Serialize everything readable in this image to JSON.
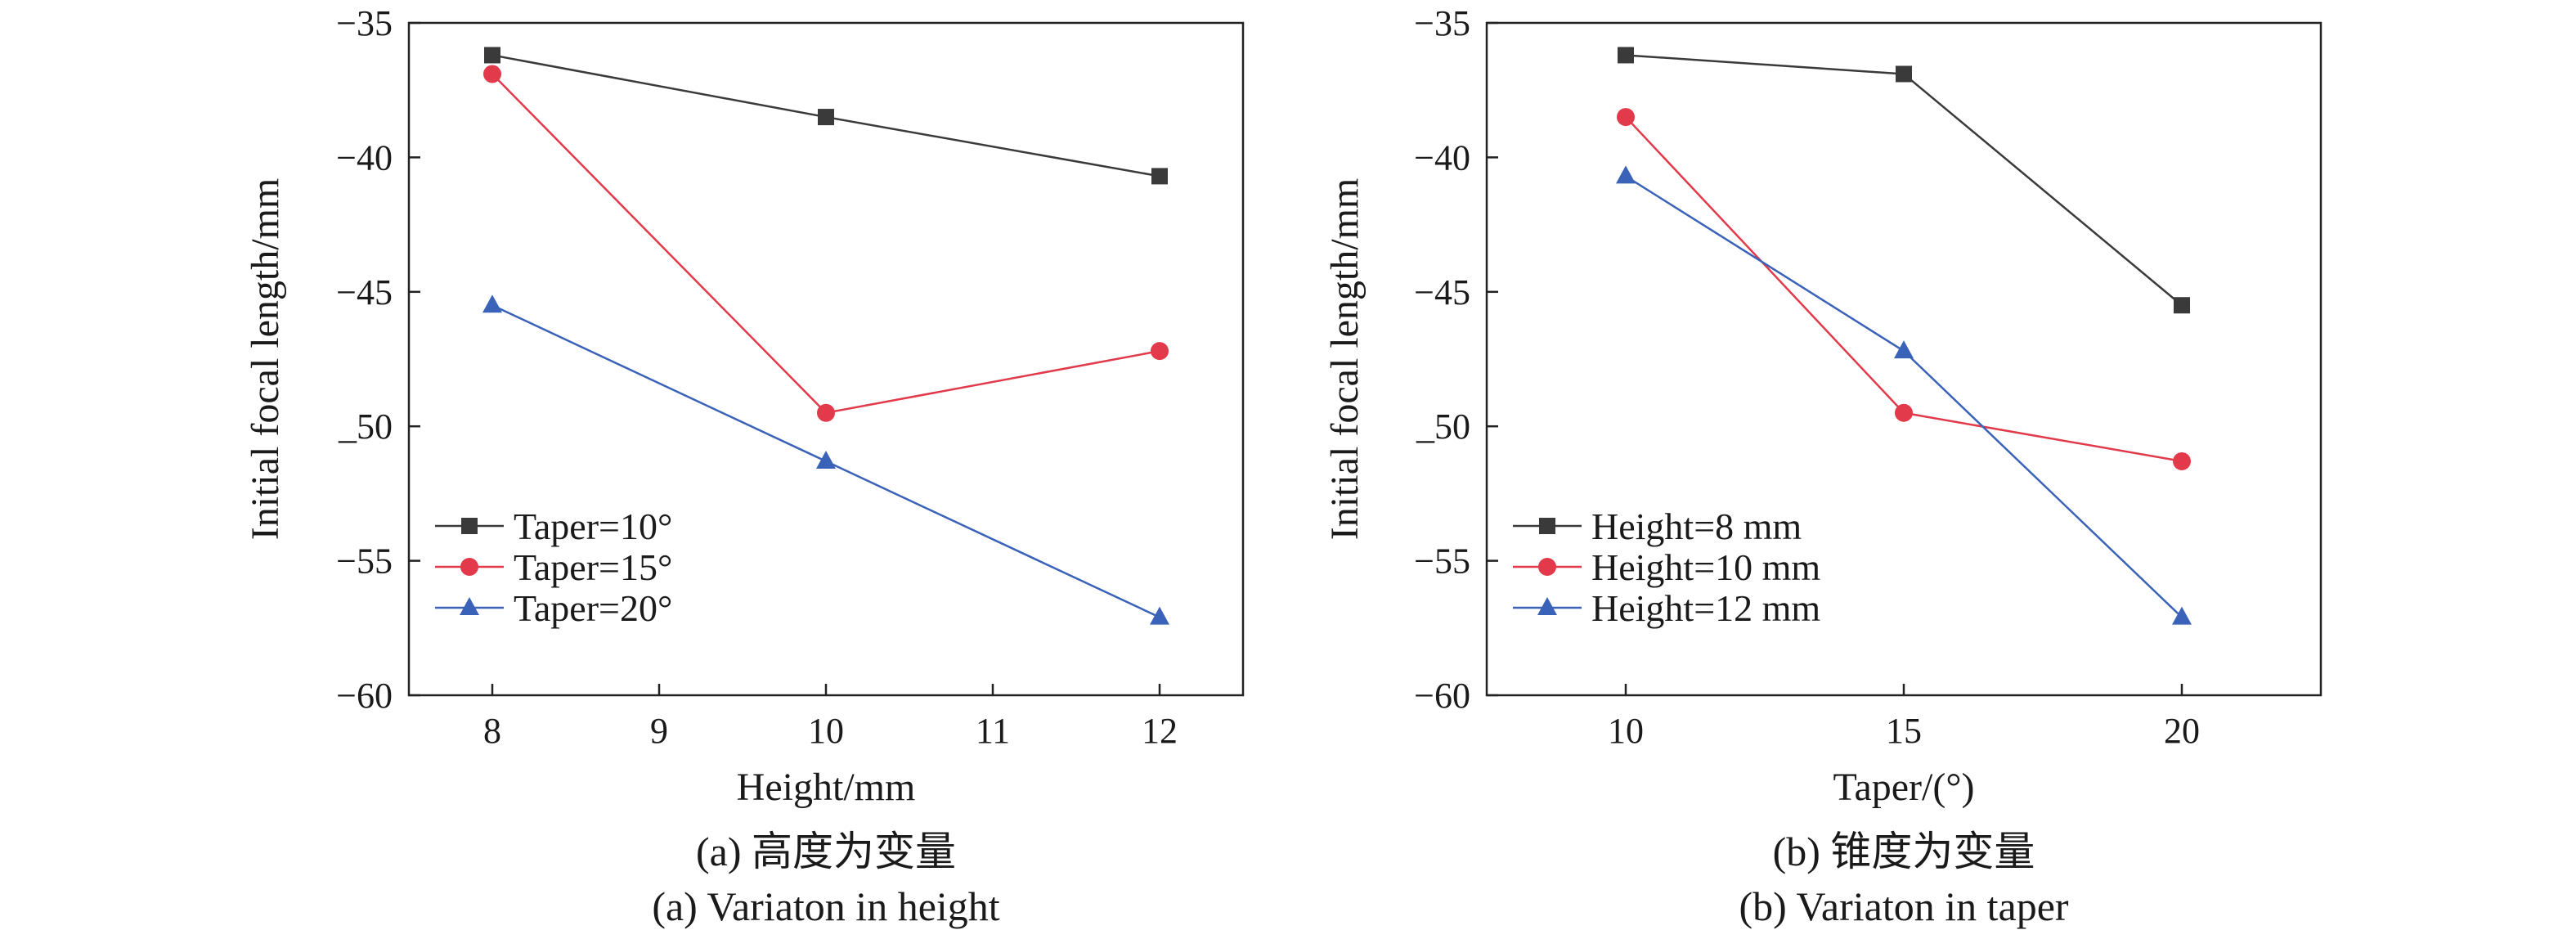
{
  "chart_data": [
    {
      "type": "line",
      "xlabel": "Height/mm",
      "ylabel": "Initial focal length/mm",
      "x": [
        8,
        10,
        12
      ],
      "xlim": [
        7.5,
        12.5
      ],
      "ylim": [
        -60,
        -35
      ],
      "xticks": [
        8,
        9,
        10,
        11,
        12
      ],
      "yticks": [
        -35,
        -40,
        -45,
        -50,
        -55,
        -60
      ],
      "ytick_labels": [
        "−35",
        "−40",
        "−45",
        "_50",
        "−55",
        "−60"
      ],
      "series": [
        {
          "name": "Taper=10°",
          "values": [
            -36.2,
            -38.5,
            -40.7
          ],
          "color": "#3a3a3a",
          "marker": "square"
        },
        {
          "name": "Taper=15°",
          "values": [
            -36.9,
            -49.5,
            -47.2
          ],
          "color": "#e23a4a",
          "marker": "circle"
        },
        {
          "name": "Taper=20°",
          "values": [
            -45.5,
            -51.3,
            -57.1
          ],
          "color": "#3a62b8",
          "marker": "triangle"
        }
      ],
      "legend_position": "bottom-left",
      "caption_cn": "(a) 高度为变量",
      "caption_en": "(a) Variaton in height"
    },
    {
      "type": "line",
      "xlabel": "Taper/(°)",
      "ylabel": "Initial focal length/mm",
      "x": [
        10,
        15,
        20
      ],
      "xlim": [
        7.5,
        22.5
      ],
      "ylim": [
        -60,
        -35
      ],
      "xticks": [
        10,
        15,
        20
      ],
      "yticks": [
        -35,
        -40,
        -45,
        -50,
        -55,
        -60
      ],
      "ytick_labels": [
        "−35",
        "−40",
        "−45",
        "_50",
        "−55",
        "−60"
      ],
      "series": [
        {
          "name": "Height=8 mm",
          "values": [
            -36.2,
            -36.9,
            -45.5
          ],
          "color": "#3a3a3a",
          "marker": "square"
        },
        {
          "name": "Height=10 mm",
          "values": [
            -38.5,
            -49.5,
            -51.3
          ],
          "color": "#e23a4a",
          "marker": "circle"
        },
        {
          "name": "Height=12 mm",
          "values": [
            -40.7,
            -47.2,
            -57.1
          ],
          "color": "#3a62b8",
          "marker": "triangle"
        }
      ],
      "legend_position": "bottom-left",
      "caption_cn": "(b) 锥度为变量",
      "caption_en": "(b) Variaton in taper"
    }
  ]
}
